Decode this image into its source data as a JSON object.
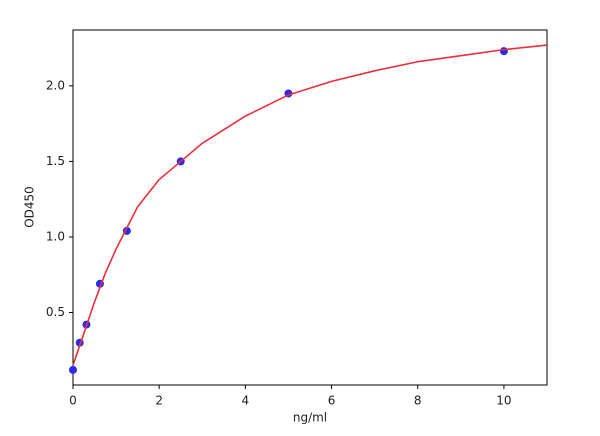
{
  "chart_data": {
    "type": "scatter",
    "x_label": "ng/ml",
    "y_label": "OD450",
    "xlim": [
      0,
      11
    ],
    "ylim": [
      0.02,
      2.37
    ],
    "xticks": [
      0,
      2,
      4,
      6,
      8,
      10
    ],
    "yticks": [
      0.5,
      {
        "value": 1,
        "label": "1.0"
      },
      1.5,
      {
        "value": 2,
        "label": "2.0"
      }
    ],
    "series": [
      {
        "mode": "markers",
        "color": "#2b2bf0",
        "x": [
          0,
          0.156,
          0.312,
          0.625,
          1.25,
          2.5,
          5,
          10
        ],
        "values": [
          0.12,
          0.3,
          0.42,
          0.69,
          1.04,
          1.5,
          1.95,
          2.23
        ]
      },
      {
        "mode": "line",
        "color": "#e8303c",
        "x": [
          0,
          0.25,
          0.5,
          0.75,
          1,
          1.5,
          2,
          2.5,
          3,
          4,
          5,
          6,
          7,
          8,
          9,
          10,
          11
        ],
        "values": [
          0.15,
          0.36,
          0.57,
          0.76,
          0.92,
          1.2,
          1.38,
          1.5,
          1.62,
          1.8,
          1.94,
          2.03,
          2.1,
          2.16,
          2.2,
          2.24,
          2.27
        ]
      }
    ]
  }
}
